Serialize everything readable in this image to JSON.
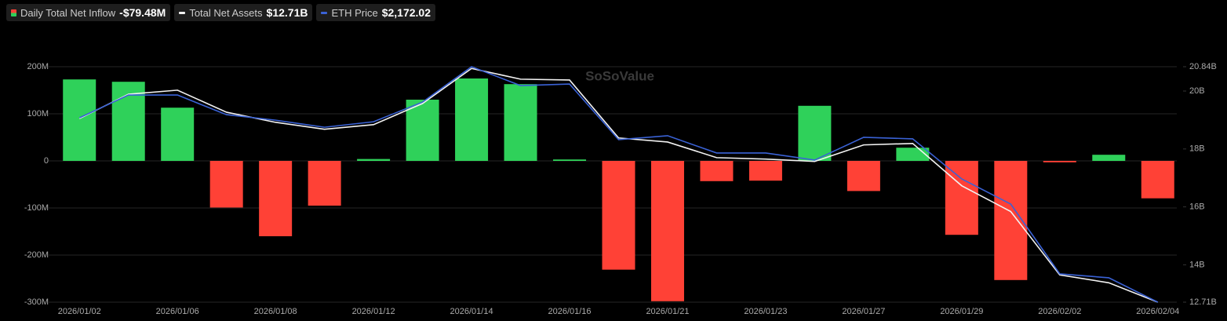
{
  "chart_data": {
    "type": "bar",
    "watermark": "SoSoValue",
    "categories": [
      "2026/01/02",
      null,
      "2026/01/06",
      null,
      "2026/01/08",
      null,
      "2026/01/12",
      null,
      "2026/01/14",
      null,
      "2026/01/16",
      null,
      "2026/01/21",
      null,
      "2026/01/23",
      null,
      "2026/01/27",
      null,
      "2026/01/29",
      null,
      "2026/02/02",
      null,
      "2026/02/04"
    ],
    "series": [
      {
        "name": "Daily Total Net Inflow",
        "type": "bar",
        "color": "#2fd15a",
        "negative_color": "#ff4136",
        "values": [
          173,
          168,
          113,
          -99,
          -160,
          -95,
          4,
          130,
          175,
          163,
          3,
          -231,
          -298,
          -43,
          -42,
          117,
          -64,
          28,
          -157,
          -253,
          -3,
          13,
          -79.48
        ],
        "value_labels": [
          null,
          null,
          null,
          null,
          null,
          null,
          null,
          null,
          null,
          null,
          null,
          null,
          null,
          null,
          null,
          null,
          null,
          null,
          null,
          null,
          null,
          null,
          "-$79.48M"
        ]
      },
      {
        "name": "Total Net Assets",
        "type": "line",
        "axis": "y2",
        "color": "#f2f2f2",
        "values": [
          19.05,
          19.89,
          20.03,
          19.27,
          18.92,
          18.68,
          18.84,
          19.57,
          20.78,
          20.41,
          20.38,
          18.38,
          18.24,
          17.7,
          17.65,
          17.57,
          18.14,
          18.19,
          16.73,
          15.84,
          13.65,
          13.38,
          12.71
        ],
        "value_labels": [
          null,
          null,
          null,
          null,
          null,
          null,
          null,
          null,
          null,
          null,
          null,
          null,
          null,
          null,
          null,
          null,
          null,
          null,
          null,
          null,
          null,
          null,
          "$12.71B"
        ]
      },
      {
        "name": "ETH Price",
        "type": "line",
        "axis": "y3",
        "color": "#3a62d6",
        "values": [
          3110,
          3226,
          3226,
          3126,
          3098,
          3062,
          3090,
          3190,
          3370,
          3274,
          3282,
          2999,
          3019,
          2931,
          2931,
          2895,
          3011,
          3003,
          2799,
          2671,
          2316,
          2296,
          2172.02
        ],
        "value_labels": [
          null,
          null,
          null,
          null,
          null,
          null,
          null,
          null,
          null,
          null,
          null,
          null,
          null,
          null,
          null,
          null,
          null,
          null,
          null,
          null,
          null,
          null,
          "$2,172.02"
        ]
      }
    ],
    "ylim": [
      -300,
      200
    ],
    "yticks": [
      {
        "value": -300,
        "label": "-300M"
      },
      {
        "value": -200,
        "label": "-200M"
      },
      {
        "value": -100,
        "label": "-100M"
      },
      0,
      {
        "value": 100,
        "label": "100M"
      },
      {
        "value": 200,
        "label": "200M"
      }
    ],
    "y2lim": [
      12.71,
      20.84
    ],
    "y2ticks": [
      {
        "value": 12.71,
        "label": "12.71B"
      },
      {
        "value": 14,
        "label": "14B"
      },
      {
        "value": 16,
        "label": "16B"
      },
      {
        "value": 18,
        "label": "18B"
      },
      {
        "value": 20,
        "label": "20B"
      },
      {
        "value": 20.84,
        "label": "20.84B"
      }
    ],
    "y3lim": [
      2172.02,
      3370
    ],
    "grid": true
  }
}
